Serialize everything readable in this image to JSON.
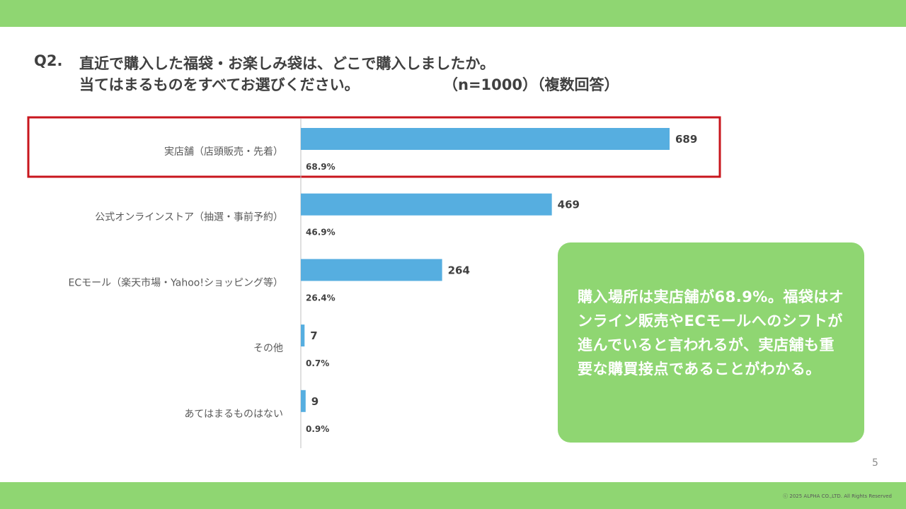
{
  "colors": {
    "band": "#8fd672",
    "bar": "#56aee0",
    "callout_bg": "#8fd672",
    "highlight_border": "#c8161d",
    "axis": "#bfbfbf"
  },
  "question": {
    "number": "Q2.",
    "line1": "直近で購入した福袋・お楽しみ袋は、どこで購入しましたか。",
    "line2": "当てはまるものをすべてお選びください。",
    "meta": "（n=1000）（複数回答）"
  },
  "chart_data": {
    "type": "bar",
    "orientation": "horizontal",
    "categories": [
      "実店舗（店頭販売・先着）",
      "公式オンラインストア（抽選・事前予約）",
      "ECモール（楽天市場・Yahoo!ショッピング等）",
      "その他",
      "あてはまるものはない"
    ],
    "values": [
      689,
      469,
      264,
      7,
      9
    ],
    "value_labels": [
      "689",
      "469",
      "264",
      "7",
      "9"
    ],
    "percent_labels": [
      "68.9%",
      "46.9%",
      "26.4%",
      "0.7%",
      "0.9%"
    ],
    "highlighted_index": 0,
    "xlim": [
      0,
      1000
    ]
  },
  "callout": {
    "text": "購入場所は実店舗が68.9%。福袋はオンライン販売やECモールへのシフトが進んでいると言われるが、実店舗も重要な購買接点であることがわかる。"
  },
  "footer": {
    "page_number": "5",
    "copyright": "ⓒ 2025 ALPHA CO.,LTD. All Rights Reserved"
  }
}
